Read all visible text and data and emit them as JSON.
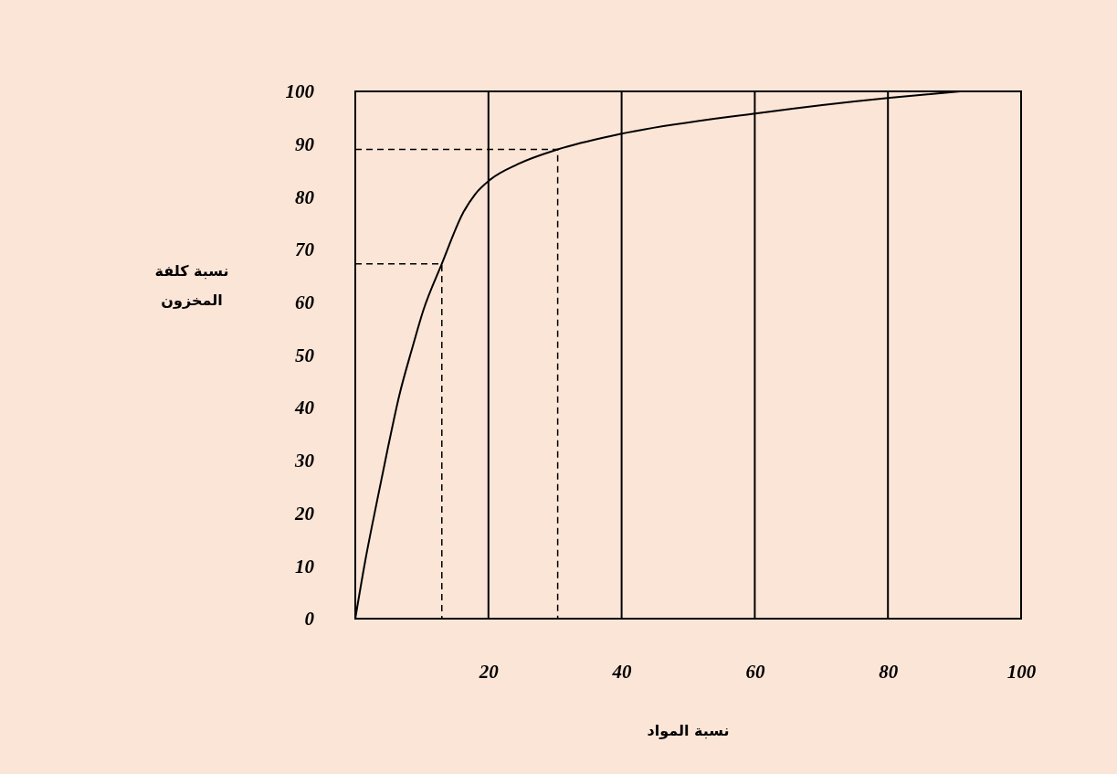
{
  "chart_data": {
    "type": "line",
    "xlabel": "نسبة المواد",
    "ylabel": "نسبة كلفة المخزون",
    "xlim": [
      0,
      100
    ],
    "ylim": [
      0,
      100
    ],
    "xticks": [
      20,
      40,
      60,
      80,
      100
    ],
    "yticks": [
      0,
      10,
      20,
      30,
      40,
      50,
      60,
      70,
      80,
      90,
      100
    ],
    "grid": "x",
    "marker": "none",
    "series": [
      {
        "color": "#000000",
        "line_style": "solid",
        "x": [
          0,
          1.5,
          3.3,
          4.9,
          6.6,
          8.6,
          10.2,
          13.0,
          16.2,
          18.0,
          20.3,
          24.4,
          30.4,
          39.7,
          60.6,
          80.3,
          90.9
        ],
        "values": [
          0,
          11,
          22.5,
          32.4,
          42.3,
          51.5,
          58.4,
          67.3,
          77,
          80.5,
          83.3,
          86.2,
          89.0,
          91.9,
          95.9,
          98.8,
          100
        ]
      },
      {
        "color": "#000000",
        "line_style": "dashed",
        "x": [
          0,
          13.0,
          13.0
        ],
        "values": [
          67.3,
          67.3,
          0
        ]
      },
      {
        "color": "#000000",
        "line_style": "dashed",
        "x": [
          0,
          30.4,
          30.4
        ],
        "values": [
          89.0,
          89.0,
          0
        ]
      }
    ]
  }
}
